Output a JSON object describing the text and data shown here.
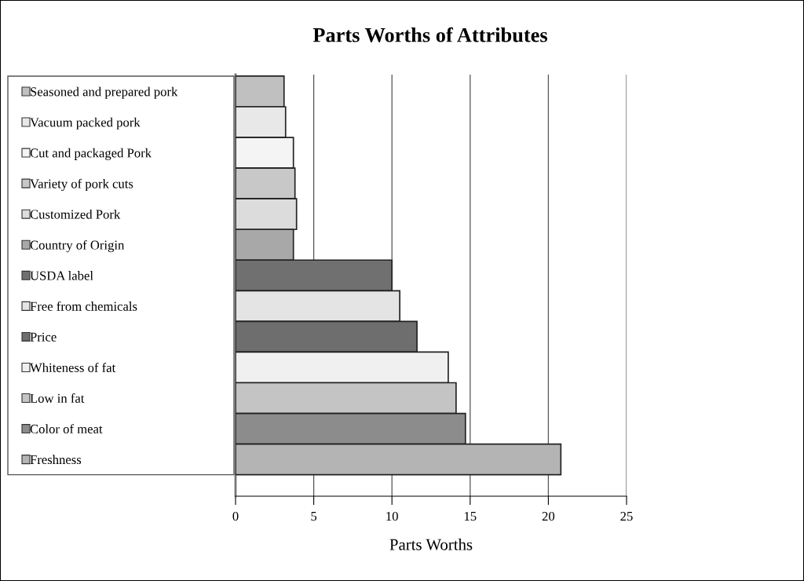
{
  "chart_data": {
    "type": "bar",
    "orientation": "horizontal",
    "title": "Parts Worths of Attributes",
    "xlabel": "Parts Worths",
    "categories": [
      "Seasoned and prepared pork",
      "Vacuum packed pork",
      "Cut and packaged Pork",
      "Variety of pork cuts",
      "Customized Pork",
      "Country of Origin",
      "USDA label",
      "Free from chemicals",
      "Price",
      "Whiteness of fat",
      "Low in fat",
      "Color of meat",
      "Freshness"
    ],
    "values": [
      3.1,
      3.2,
      3.7,
      3.8,
      3.9,
      3.7,
      10.0,
      10.5,
      11.6,
      13.6,
      14.1,
      14.7,
      20.8
    ],
    "colors": [
      "#c0c0c0",
      "#e8e8e8",
      "#f4f4f4",
      "#c8c8c8",
      "#dcdcdc",
      "#a8a8a8",
      "#707070",
      "#e4e4e4",
      "#6e6e6e",
      "#f0f0f0",
      "#c4c4c4",
      "#8c8c8c",
      "#b4b4b4"
    ],
    "xlim": [
      0,
      25
    ],
    "xticks": [
      0,
      5,
      10,
      15,
      20,
      25
    ],
    "grid": "x"
  }
}
